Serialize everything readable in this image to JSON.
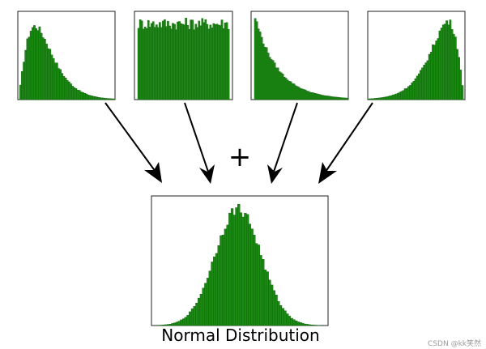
{
  "diagram": {
    "operator": "+",
    "caption": "Normal Distribution",
    "watermark": "CSDN @kk笑然"
  },
  "chart_data": [
    {
      "type": "bar",
      "shape": "right-skewed"
    },
    {
      "type": "bar",
      "shape": "uniform"
    },
    {
      "type": "bar",
      "shape": "exponential-decay"
    },
    {
      "type": "bar",
      "shape": "left-skewed"
    },
    {
      "type": "bar",
      "shape": "normal"
    }
  ],
  "colors": {
    "bar_fill": "#1a8a12",
    "bar_edge": "#0d5a08",
    "background": "#ffffff"
  }
}
